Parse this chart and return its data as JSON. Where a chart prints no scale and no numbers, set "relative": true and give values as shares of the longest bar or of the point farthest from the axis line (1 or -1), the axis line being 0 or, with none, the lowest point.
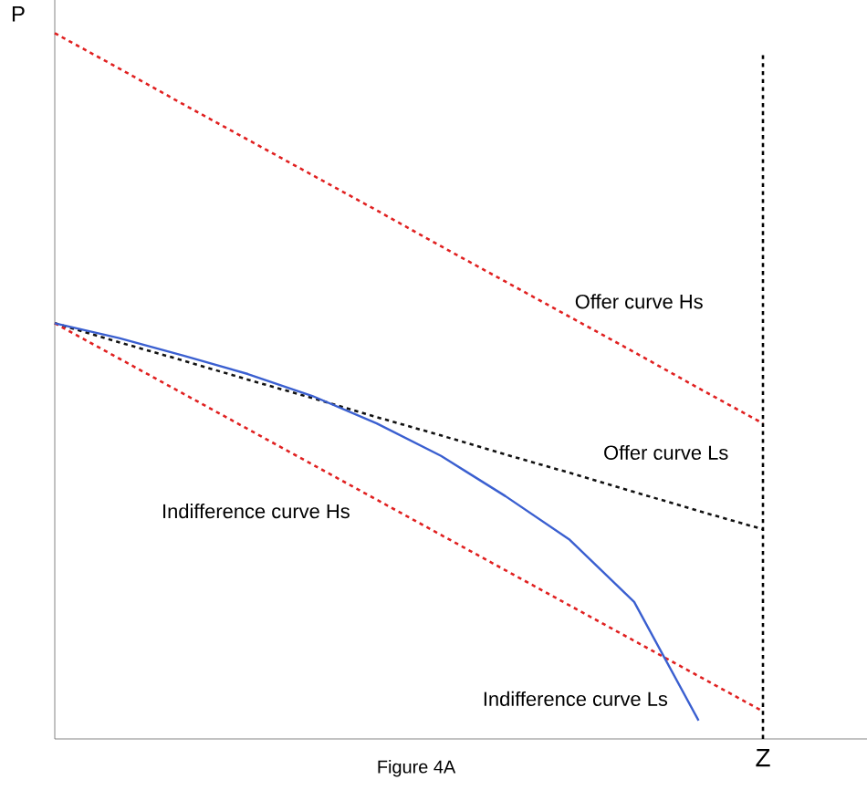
{
  "chart_data": {
    "type": "line",
    "relative": true,
    "xlabel": "Figure 4A",
    "ylabel": "P",
    "grid": false,
    "marker": "none",
    "categories": [
      null,
      null,
      null,
      null,
      null,
      null,
      null,
      null,
      null,
      null,
      null,
      null
    ],
    "series": [
      {
        "color": "#e02020",
        "line_style": "dashed",
        "values": [
          1,
          0.95,
          0.899,
          0.849,
          0.799,
          0.749,
          0.698,
          0.648,
          0.598,
          0.548,
          0.497,
          0.447
        ]
      },
      {
        "color": "#111111",
        "line_style": "dashed",
        "values": [
          0.589,
          0.562,
          0.536,
          0.509,
          0.483,
          0.456,
          0.43,
          0.403,
          0.377,
          0.35,
          0.323,
          0.297
        ]
      },
      {
        "color": "#e02020",
        "line_style": "dashed",
        "values": [
          0.589,
          0.539,
          0.489,
          0.439,
          0.389,
          0.339,
          0.289,
          0.239,
          0.189,
          0.139,
          0.089,
          0.039
        ]
      },
      {
        "color": "#3a5fd0",
        "line_style": "solid",
        "values": [
          0.589,
          0.568,
          0.543,
          0.517,
          0.486,
          0.447,
          0.401,
          0.344,
          0.282,
          0.194,
          0.026,
          null
        ]
      }
    ],
    "annotations": [
      "Offer curve Hs",
      "Offer curve Ls",
      "Indifference curve Hs",
      "Indifference curve Ls",
      "Z"
    ]
  }
}
